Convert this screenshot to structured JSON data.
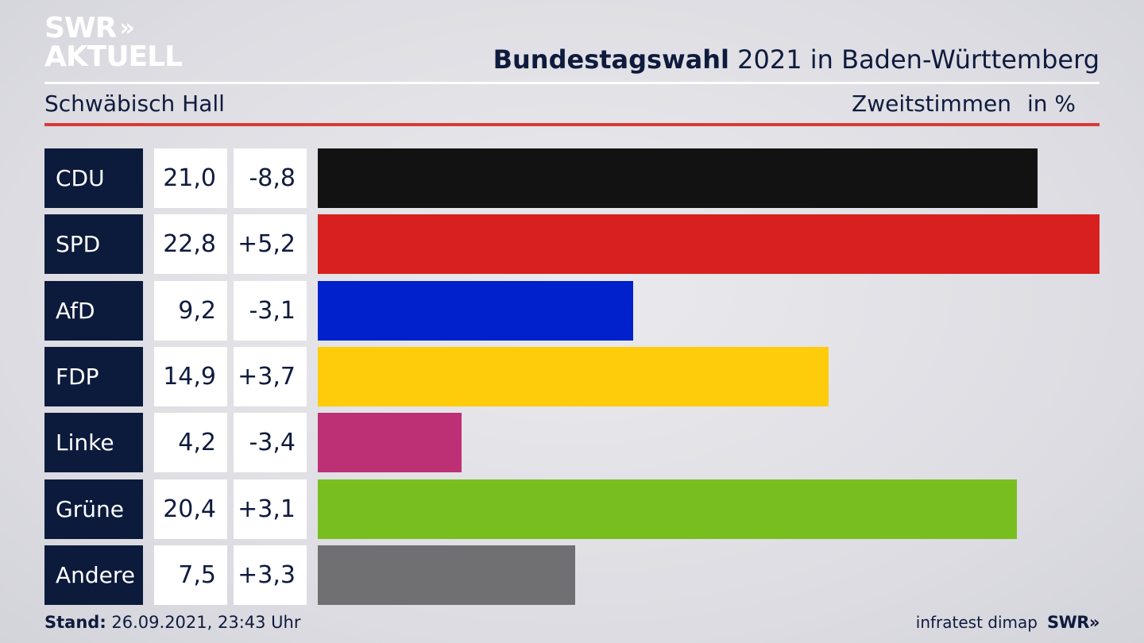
{
  "header": {
    "logo_line1": "SWR",
    "logo_chevrons": "»",
    "logo_line2": "AKTUELL",
    "title_bold": "Bundestagswahl",
    "title_rest": " 2021 in Baden-Württemberg",
    "region": "Schwäbisch Hall",
    "measure": "Zweitstimmen",
    "unit": "in %"
  },
  "footer": {
    "stand_label": "Stand:",
    "stand_value": " 26.09.2021, 23:43 Uhr",
    "source": "infratest dimap",
    "brand": "SWR»"
  },
  "chart_data": {
    "type": "bar",
    "orientation": "horizontal",
    "categories": [
      "CDU",
      "SPD",
      "AfD",
      "FDP",
      "Linke",
      "Grüne",
      "Andere"
    ],
    "values": [
      21.0,
      22.8,
      9.2,
      14.9,
      4.2,
      20.4,
      7.5
    ],
    "value_labels": [
      "21,0",
      "22,8",
      "9,2",
      "14,9",
      "4,2",
      "20,4",
      "7,5"
    ],
    "change_labels": [
      "-8,8",
      "+5,2",
      "-3,1",
      "+3,7",
      "-3,4",
      "+3,1",
      "+3,3"
    ],
    "colors": [
      "#121212",
      "#d8201e",
      "#0021cc",
      "#fecc0a",
      "#be3075",
      "#78be1e",
      "#707073"
    ],
    "xlim": [
      0,
      22.8
    ],
    "grid": false,
    "legend": "none"
  }
}
